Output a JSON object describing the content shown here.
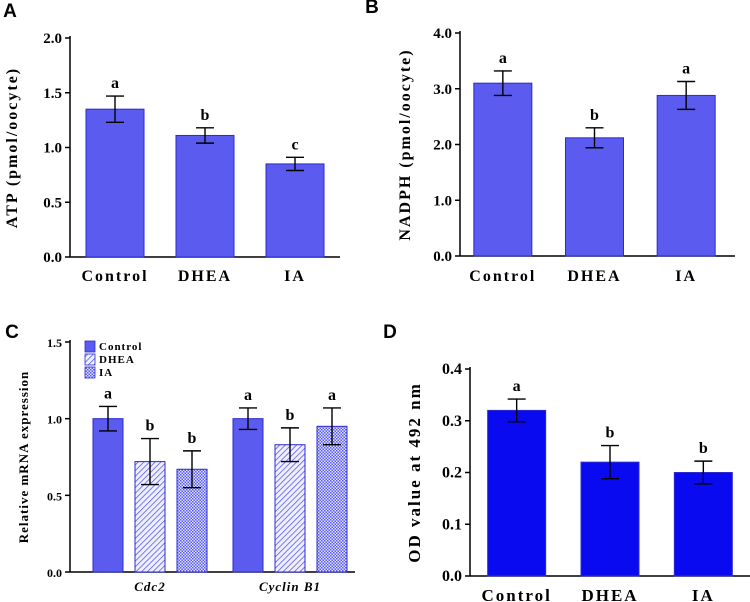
{
  "chart_data": [
    {
      "panel": "A",
      "type": "bar",
      "categories": [
        "Control",
        "DHEA",
        "IA"
      ],
      "values": [
        1.35,
        1.11,
        0.85
      ],
      "errors": [
        0.12,
        0.07,
        0.06
      ],
      "letters": [
        "a",
        "b",
        "c"
      ],
      "ylabel": "ATP  (pmol/oocyte)",
      "ylim": [
        0,
        2.0
      ],
      "yticks": [
        "0.0",
        "0.5",
        "1.0",
        "1.5",
        "2.0"
      ],
      "color": "#5b5bef"
    },
    {
      "panel": "B",
      "type": "bar",
      "categories": [
        "Control",
        "DHEA",
        "IA"
      ],
      "values": [
        3.1,
        2.12,
        2.88
      ],
      "errors": [
        0.22,
        0.18,
        0.25
      ],
      "letters": [
        "a",
        "b",
        "a"
      ],
      "ylabel": "NADPH  (pmol/oocyte)",
      "ylim": [
        0,
        4.0
      ],
      "yticks": [
        "0.0",
        "1.0",
        "2.0",
        "3.0",
        "4.0"
      ],
      "color": "#5b5bef"
    },
    {
      "panel": "C",
      "type": "bar",
      "categories": [
        "Cdc2",
        "Cyclin B1"
      ],
      "series": [
        {
          "name": "Control",
          "values": [
            1.0,
            1.0
          ],
          "errors": [
            0.08,
            0.07
          ],
          "letters": [
            "a",
            "a"
          ]
        },
        {
          "name": "DHEA",
          "values": [
            0.72,
            0.83
          ],
          "errors": [
            0.15,
            0.11
          ],
          "letters": [
            "b",
            "b"
          ]
        },
        {
          "name": "IA",
          "values": [
            0.67,
            0.95
          ],
          "errors": [
            0.12,
            0.12
          ],
          "letters": [
            "b",
            "a"
          ]
        }
      ],
      "ylabel": "Relative mRNA expression",
      "ylim": [
        0,
        1.5
      ],
      "yticks": [
        "0.0",
        "0.5",
        "1.0",
        "1.5"
      ],
      "color": "#5b5bef"
    },
    {
      "panel": "D",
      "type": "bar",
      "categories": [
        "Control",
        "DHEA",
        "IA"
      ],
      "values": [
        0.32,
        0.22,
        0.2
      ],
      "errors": [
        0.022,
        0.032,
        0.022
      ],
      "letters": [
        "a",
        "b",
        "b"
      ],
      "ylabel": "OD value at 492 nm",
      "ylim": [
        0,
        0.4
      ],
      "yticks": [
        "0.0",
        "0.1",
        "0.2",
        "0.3",
        "0.4"
      ],
      "color": "#0a0af0"
    }
  ]
}
